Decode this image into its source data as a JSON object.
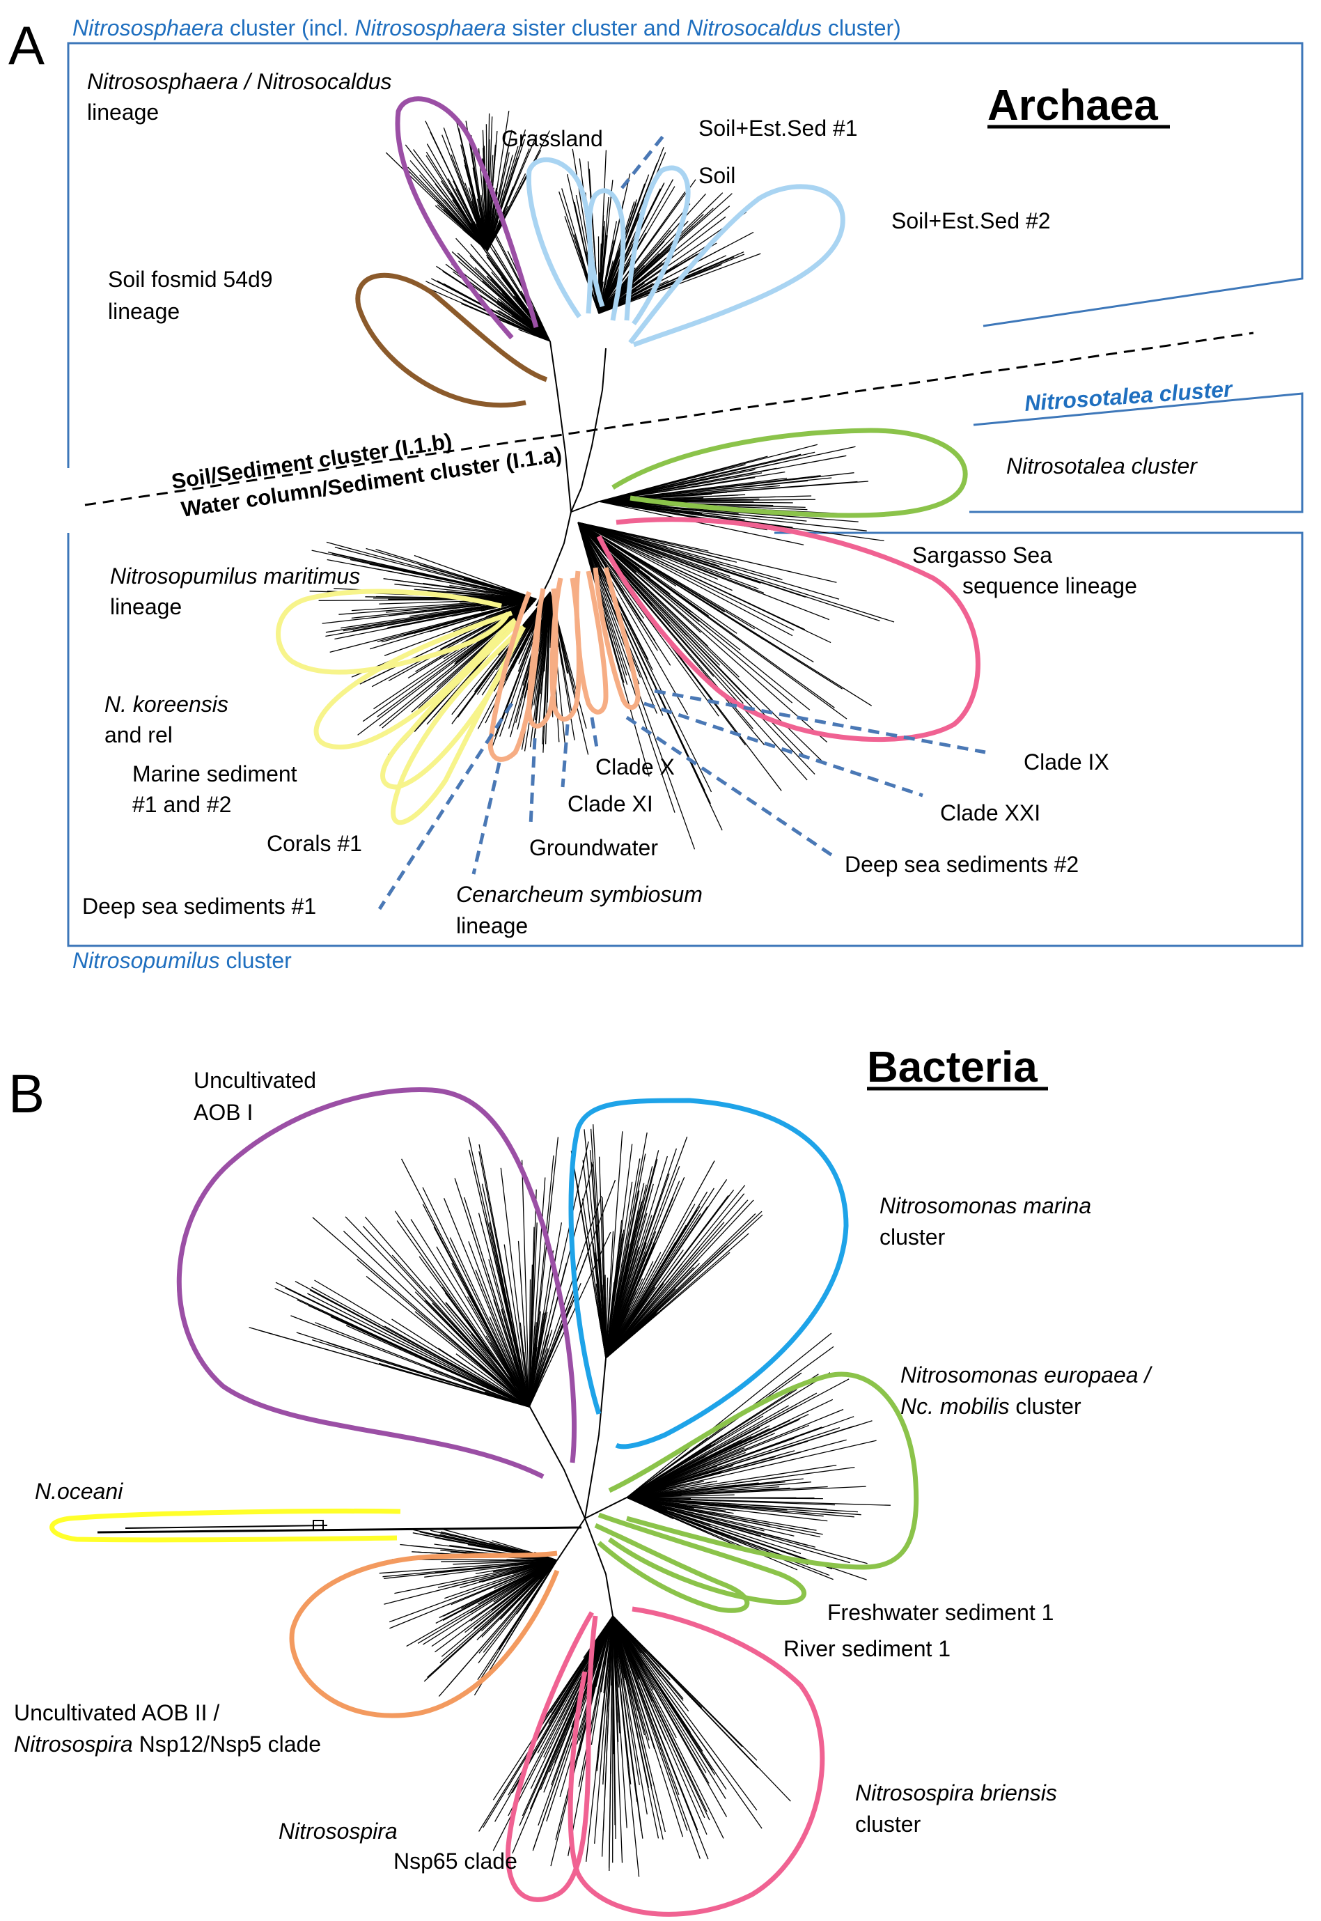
{
  "colors": {
    "box_border": "#3d77b9",
    "blue_text": "#1f6fbf",
    "purple": "#9b4fa5",
    "brown": "#8b5a2b",
    "light_blue": "#a9d4f2",
    "green": "#8bc34a",
    "pink": "#f06292",
    "yellow": "#f7f48b",
    "orange": "#f6ad84",
    "bact_blue": "#1ea3e8",
    "bact_orange": "#f39a5f",
    "bact_yellow": "#ffff2a",
    "dash_blue": "#4a78b5",
    "tree": "#000000"
  },
  "panelA": {
    "letter": "A",
    "title": "Archaea",
    "top_cluster": {
      "pre_italic": "Nitrososphaera",
      "text1": " cluster (incl. ",
      "italic2": "Nitrososphaera",
      "text2": " sister cluster and ",
      "italic3": "Nitrosocaldus",
      "text3": " cluster)"
    },
    "nitrososphaera_lineage": [
      "Nitrososphaera / Nitrosocaldus",
      "lineage"
    ],
    "grassland": "Grassland",
    "soil_est_sed_1": "Soil+Est.Sed #1",
    "soil": "Soil",
    "soil_est_sed_2": "Soil+Est.Sed #2",
    "soil_fosmid": [
      "Soil fosmid 54d9",
      "lineage"
    ],
    "divider_soil": "Soil/Sediment cluster  (I.1.b)",
    "divider_water": "Water column/Sediment cluster (I.1.a)",
    "nitrosotalea_cluster_label": "Nitrosotalea cluster",
    "nitrosotalea_cluster_inner": "Nitrosotalea cluster",
    "sargasso": [
      "Sargasso Sea",
      "sequence lineage"
    ],
    "n_maritimus": [
      "Nitrosopumilus maritimus",
      "lineage"
    ],
    "n_koreensis": [
      "N. koreensis",
      "and rel"
    ],
    "marine_sediment": [
      "Marine sediment",
      "#1 and #2"
    ],
    "corals": "Corals #1",
    "deep_sea_1": "Deep sea sediments #1",
    "cenarcheum": [
      "Cenarcheum symbiosum",
      "lineage"
    ],
    "groundwater": "Groundwater",
    "clade_xi": "Clade XI",
    "clade_x": "Clade X",
    "clade_ix": "Clade IX",
    "clade_xxi": "Clade XXI",
    "deep_sea_2": "Deep sea sediments #2",
    "bottom_cluster_italic": "Nitrosopumilus",
    "bottom_cluster_text": " cluster"
  },
  "panelB": {
    "letter": "B",
    "title": "Bacteria",
    "aob1": [
      "Uncultivated",
      "AOB I"
    ],
    "n_marina": [
      "Nitrosomonas marina",
      "cluster"
    ],
    "n_europaea_line1": "Nitrosomonas europaea /",
    "n_europaea_line2_italic": "Nc. mobilis",
    "n_europaea_line2_text": " cluster",
    "n_oceani": "N.oceani",
    "freshwater": "Freshwater sediment 1",
    "river": "River sediment 1",
    "aob2_line1": "Uncultivated AOB II /",
    "aob2_line2_italic": "Nitrosospira",
    "aob2_line2_text": " Nsp12/Nsp5 clade",
    "nsp65_italic": "Nitrosospira",
    "nsp65_text": "Nsp65 clade",
    "briensis": [
      "Nitrosospira briensis",
      "cluster"
    ]
  }
}
